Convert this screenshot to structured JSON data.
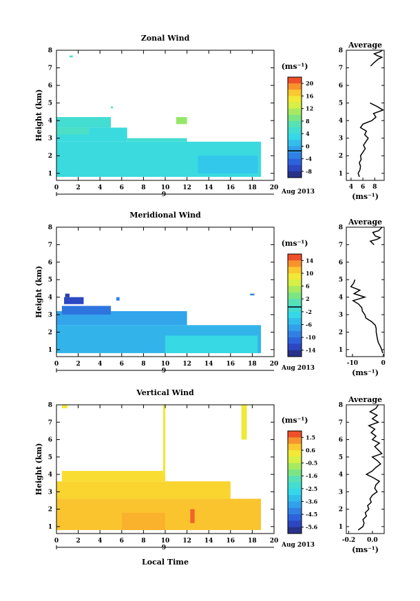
{
  "chart_data": [
    {
      "type": "heatmap",
      "title": "Zonal Wind",
      "ylabel": "Height (km)",
      "xlabel": "",
      "unit": "(ms⁻¹)",
      "date_label": "Aug 2013",
      "day_label": "9",
      "xlim": [
        0,
        20
      ],
      "ylim": [
        0.6,
        8
      ],
      "x_ticks": [
        "0",
        "2",
        "4",
        "6",
        "8",
        "10",
        "12",
        "14",
        "16",
        "18",
        "20"
      ],
      "y_ticks": [
        "1",
        "2",
        "3",
        "4",
        "5",
        "6",
        "7",
        "8"
      ],
      "colorbar": {
        "min": -8,
        "max": 22,
        "ticks": [
          "20",
          "16",
          "12",
          "8",
          "4",
          "0",
          "-4",
          "-8"
        ],
        "marker": 0
      },
      "blocks": [
        {
          "x0": 0,
          "x1": 18.8,
          "y0": 0.8,
          "y1": 2.8,
          "v": 5
        },
        {
          "x0": 0,
          "x1": 6.5,
          "y0": 2.8,
          "y1": 3.6,
          "v": 5
        },
        {
          "x0": 13,
          "x1": 18.5,
          "y0": 1.0,
          "y1": 2.0,
          "v": 3
        },
        {
          "x0": 6.5,
          "x1": 12,
          "y0": 2.8,
          "y1": 3.0,
          "v": 6
        },
        {
          "x0": 0,
          "x1": 3,
          "y0": 3.2,
          "y1": 3.6,
          "v": 7
        },
        {
          "x0": 0,
          "x1": 5,
          "y0": 3.6,
          "y1": 4.2,
          "v": 6
        },
        {
          "x0": 11,
          "x1": 12,
          "y0": 3.8,
          "y1": 4.2,
          "v": 11
        },
        {
          "x0": 1.2,
          "x1": 1.5,
          "y0": 7.6,
          "y1": 7.7,
          "v": 6
        },
        {
          "x0": 5,
          "x1": 5.2,
          "y0": 4.7,
          "y1": 4.8,
          "v": 7
        }
      ],
      "profile": {
        "title": "Average",
        "xlabel": "(ms⁻¹)",
        "x_ticks": [
          "4",
          "6",
          "8"
        ],
        "xlim": [
          3.2,
          9.6
        ],
        "y": [
          0.8,
          1.0,
          1.2,
          1.4,
          1.6,
          1.8,
          2.0,
          2.2,
          2.4,
          2.6,
          2.8,
          3.0,
          3.2,
          3.4,
          3.6,
          3.8,
          4.0,
          4.2,
          4.4,
          4.6,
          4.8,
          5.0
        ],
        "x": [
          5.4,
          5.2,
          5.5,
          5.6,
          5.4,
          5.7,
          5.6,
          6.0,
          6.4,
          6.1,
          6.5,
          6.9,
          6.3,
          6.6,
          5.6,
          6.0,
          7.5,
          8.2,
          7.8,
          9.4,
          8.4,
          7.2
        ],
        "upper_x": [
          7.3,
          7.9,
          8.6,
          9.2,
          8.4,
          7.9,
          8.8,
          9.3
        ],
        "upper_y": [
          7.1,
          7.3,
          7.5,
          7.6,
          7.7,
          7.8,
          7.9,
          8.0
        ]
      }
    },
    {
      "type": "heatmap",
      "title": "Meridional Wind",
      "ylabel": "Height (km)",
      "xlabel": "",
      "unit": "(ms⁻¹)",
      "date_label": "Aug 2013",
      "day_label": "9",
      "xlim": [
        0,
        20
      ],
      "ylim": [
        0.6,
        8
      ],
      "x_ticks": [
        "0",
        "2",
        "4",
        "6",
        "8",
        "10",
        "12",
        "14",
        "16",
        "18",
        "20"
      ],
      "y_ticks": [
        "1",
        "2",
        "3",
        "4",
        "5",
        "6",
        "7",
        "8"
      ],
      "colorbar": {
        "min": -15,
        "max": 16,
        "ticks": [
          "14",
          "10",
          "6",
          "2",
          "-2",
          "-6",
          "-10",
          "-14"
        ],
        "marker": 0
      },
      "blocks": [
        {
          "x0": 0,
          "x1": 18.8,
          "y0": 0.8,
          "y1": 2.4,
          "v": -5
        },
        {
          "x0": 10,
          "x1": 18.5,
          "y0": 0.8,
          "y1": 1.8,
          "v": -2
        },
        {
          "x0": 0,
          "x1": 12,
          "y0": 2.4,
          "y1": 3.2,
          "v": -6
        },
        {
          "x0": 0.5,
          "x1": 5,
          "y0": 3.0,
          "y1": 3.5,
          "v": -9
        },
        {
          "x0": 0.7,
          "x1": 2.5,
          "y0": 3.6,
          "y1": 4.0,
          "v": -12
        },
        {
          "x0": 0.8,
          "x1": 1.2,
          "y0": 4.0,
          "y1": 4.2,
          "v": -13
        },
        {
          "x0": 5.5,
          "x1": 5.8,
          "y0": 3.8,
          "y1": 4.0,
          "v": -8
        },
        {
          "x0": 17.8,
          "x1": 18.2,
          "y0": 4.1,
          "y1": 4.2,
          "v": -8
        }
      ],
      "profile": {
        "title": "Average",
        "xlabel": "(ms⁻¹)",
        "x_ticks": [
          "-10",
          "0"
        ],
        "xlim": [
          -12,
          0.3
        ],
        "y": [
          0.8,
          1.0,
          1.2,
          1.4,
          1.6,
          1.8,
          2.0,
          2.2,
          2.4,
          2.6,
          2.8,
          3.0,
          3.2,
          3.4,
          3.6,
          3.8,
          4.0,
          4.2,
          4.4,
          4.6,
          4.8,
          5.0
        ],
        "x": [
          -0.2,
          -0.5,
          -1.0,
          -1.6,
          -1.9,
          -2.1,
          -2.3,
          -2.3,
          -2.6,
          -3.8,
          -5.6,
          -6.0,
          -6.8,
          -7.0,
          -8.0,
          -9.8,
          -6.0,
          -9.5,
          -7.6,
          -10.5,
          -9.6,
          -9.2
        ],
        "upper_x": [
          -3.0,
          -4.2,
          -2.1,
          -1.0,
          -2.6,
          -3.4,
          -1.5,
          -0.4
        ],
        "upper_y": [
          7.0,
          7.2,
          7.3,
          7.4,
          7.5,
          7.7,
          7.8,
          8.0
        ]
      }
    },
    {
      "type": "heatmap",
      "title": "Vertical Wind",
      "ylabel": "Height (km)",
      "xlabel": "Local Time",
      "unit": "(ms⁻¹)",
      "date_label": "Aug 2013",
      "day_label": "9",
      "xlim": [
        0,
        20
      ],
      "ylim": [
        0.6,
        8
      ],
      "x_ticks": [
        "0",
        "2",
        "4",
        "6",
        "8",
        "10",
        "12",
        "14",
        "16",
        "18",
        "20"
      ],
      "y_ticks": [
        "1",
        "2",
        "3",
        "4",
        "5",
        "6",
        "7",
        "8"
      ],
      "colorbar": {
        "min": -6.0,
        "max": 2.0,
        "ticks": [
          "1.5",
          "0.6",
          "-0.5",
          "-1.6",
          "-2.5",
          "-3.6",
          "-4.5",
          "-5.6"
        ],
        "marker": null
      },
      "blocks": [
        {
          "x0": 0,
          "x1": 18.8,
          "y0": 0.8,
          "y1": 2.6,
          "v": 0.8
        },
        {
          "x0": 6,
          "x1": 10,
          "y0": 0.8,
          "y1": 1.8,
          "v": 1.0
        },
        {
          "x0": 0,
          "x1": 16,
          "y0": 2.6,
          "y1": 3.6,
          "v": 0.6
        },
        {
          "x0": 0.5,
          "x1": 10,
          "y0": 3.6,
          "y1": 4.2,
          "v": 0.5
        },
        {
          "x0": 9.8,
          "x1": 10.0,
          "y0": 4.0,
          "y1": 8.0,
          "v": 0.2
        },
        {
          "x0": 0.5,
          "x1": 1.0,
          "y0": 7.8,
          "y1": 8.0,
          "v": 0.3
        },
        {
          "x0": 17.0,
          "x1": 17.5,
          "y0": 6.0,
          "y1": 8.0,
          "v": 0.2
        },
        {
          "x0": 12.3,
          "x1": 12.7,
          "y0": 1.2,
          "y1": 2.0,
          "v": 1.6
        }
      ],
      "profile": {
        "title": "Average",
        "xlabel": "(ms⁻¹)",
        "x_ticks": [
          "-0.2",
          "0.0"
        ],
        "xlim": [
          -0.22,
          0.1
        ],
        "y": [
          0.8,
          1.0,
          1.2,
          1.4,
          1.6,
          1.8,
          2.0,
          2.2,
          2.4,
          2.6,
          2.8,
          3.0,
          3.2,
          3.4,
          3.6,
          3.8,
          4.0,
          4.2,
          4.4,
          4.6,
          4.8,
          5.0,
          5.2,
          5.4,
          5.6,
          5.8,
          6.0,
          6.2,
          6.4,
          6.6,
          6.8,
          7.0,
          7.2,
          7.4,
          7.6,
          7.8,
          8.0
        ],
        "x": [
          -0.12,
          -0.08,
          -0.07,
          -0.08,
          -0.05,
          -0.06,
          -0.03,
          -0.04,
          -0.01,
          -0.02,
          0.0,
          0.04,
          0.02,
          0.03,
          0.06,
          0.01,
          -0.05,
          0.0,
          0.03,
          0.07,
          0.04,
          0.0,
          0.08,
          0.05,
          0.02,
          0.06,
          0.0,
          0.03,
          -0.01,
          0.02,
          -0.03,
          0.05,
          0.0,
          0.04,
          -0.02,
          0.03,
          0.05
        ]
      }
    }
  ]
}
